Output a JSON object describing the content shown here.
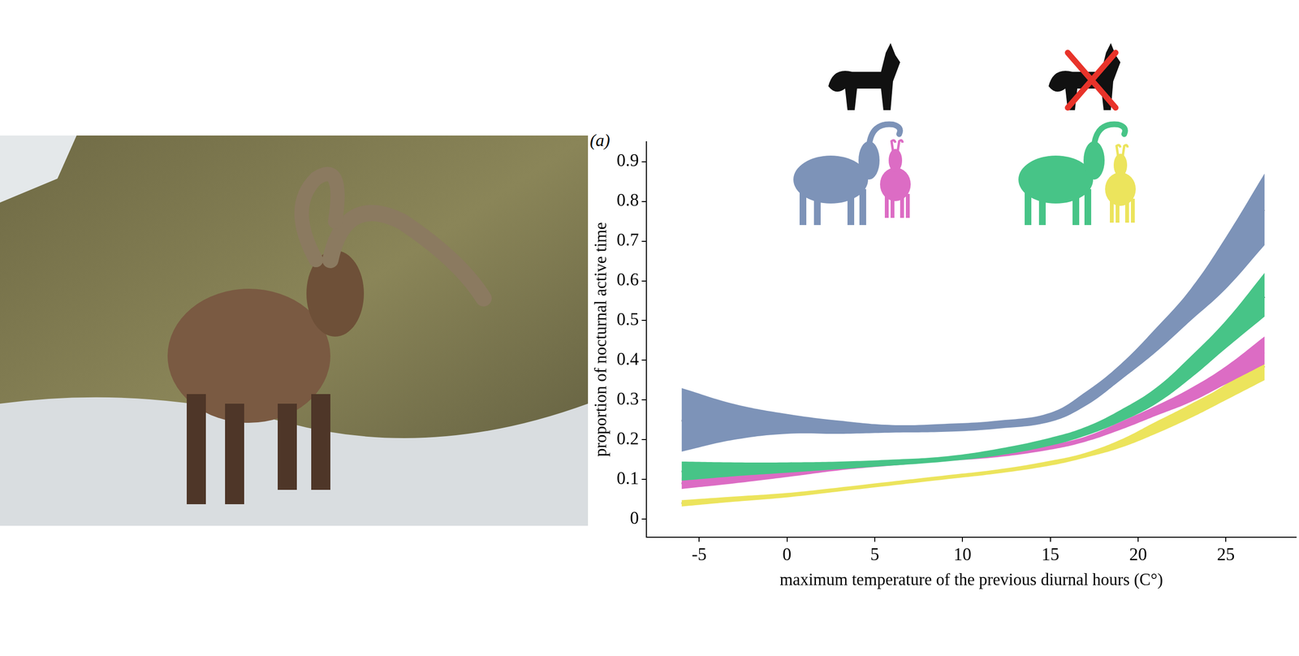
{
  "chart_data": {
    "type": "line",
    "panel_label": "(a)",
    "x_label": "maximum temperature of the previous diurnal hours (C°)",
    "y_label": "proportion of nocturnal active time",
    "xlim": [
      -8,
      29
    ],
    "xticks": [
      -5,
      0,
      5,
      10,
      15,
      20,
      25
    ],
    "ylim": [
      -0.045,
      0.95
    ],
    "yticks": [
      0,
      0.1,
      0.2,
      0.3,
      0.4,
      0.5,
      0.6,
      0.7,
      0.8,
      0.9
    ],
    "grid": false,
    "x": [
      -6,
      -3,
      0,
      3,
      6,
      9,
      12,
      15,
      17,
      19,
      21,
      23,
      25,
      27.2
    ],
    "series": [
      {
        "color": "#7d93b8",
        "line_style": "dotted",
        "values": [
          0.248,
          0.245,
          0.238,
          0.23,
          0.227,
          0.23,
          0.237,
          0.255,
          0.3,
          0.37,
          0.45,
          0.54,
          0.64,
          0.78
        ],
        "lower": [
          0.17,
          0.2,
          0.215,
          0.215,
          0.218,
          0.22,
          0.228,
          0.245,
          0.285,
          0.35,
          0.42,
          0.5,
          0.58,
          0.69
        ],
        "upper": [
          0.33,
          0.29,
          0.265,
          0.248,
          0.237,
          0.24,
          0.248,
          0.268,
          0.32,
          0.39,
          0.48,
          0.58,
          0.71,
          0.87
        ]
      },
      {
        "color": "#47c487",
        "line_style": "dashdot",
        "values": [
          0.12,
          0.125,
          0.13,
          0.135,
          0.142,
          0.15,
          0.168,
          0.195,
          0.22,
          0.26,
          0.31,
          0.38,
          0.46,
          0.56
        ],
        "lower": [
          0.097,
          0.108,
          0.117,
          0.126,
          0.135,
          0.145,
          0.16,
          0.185,
          0.21,
          0.245,
          0.29,
          0.355,
          0.43,
          0.51
        ],
        "upper": [
          0.145,
          0.143,
          0.143,
          0.145,
          0.15,
          0.158,
          0.177,
          0.205,
          0.232,
          0.275,
          0.33,
          0.41,
          0.5,
          0.62
        ]
      },
      {
        "color": "#dc6cc4",
        "line_style": "dashed",
        "values": [
          0.09,
          0.1,
          0.115,
          0.13,
          0.14,
          0.15,
          0.16,
          0.18,
          0.2,
          0.235,
          0.27,
          0.31,
          0.36,
          0.42
        ],
        "lower": [
          0.076,
          0.09,
          0.106,
          0.123,
          0.135,
          0.146,
          0.156,
          0.175,
          0.195,
          0.225,
          0.26,
          0.295,
          0.34,
          0.39
        ],
        "upper": [
          0.105,
          0.112,
          0.124,
          0.137,
          0.146,
          0.155,
          0.165,
          0.187,
          0.208,
          0.245,
          0.285,
          0.33,
          0.385,
          0.46
        ]
      },
      {
        "color": "#ece45c",
        "line_style": "solid",
        "values": [
          0.04,
          0.05,
          0.06,
          0.075,
          0.09,
          0.105,
          0.12,
          0.14,
          0.16,
          0.19,
          0.23,
          0.27,
          0.32,
          0.385
        ],
        "lower": [
          0.032,
          0.044,
          0.055,
          0.07,
          0.085,
          0.1,
          0.115,
          0.135,
          0.155,
          0.18,
          0.215,
          0.255,
          0.3,
          0.35
        ],
        "upper": [
          0.048,
          0.057,
          0.066,
          0.08,
          0.095,
          0.11,
          0.125,
          0.147,
          0.167,
          0.2,
          0.245,
          0.29,
          0.34,
          0.42
        ]
      }
    ]
  }
}
